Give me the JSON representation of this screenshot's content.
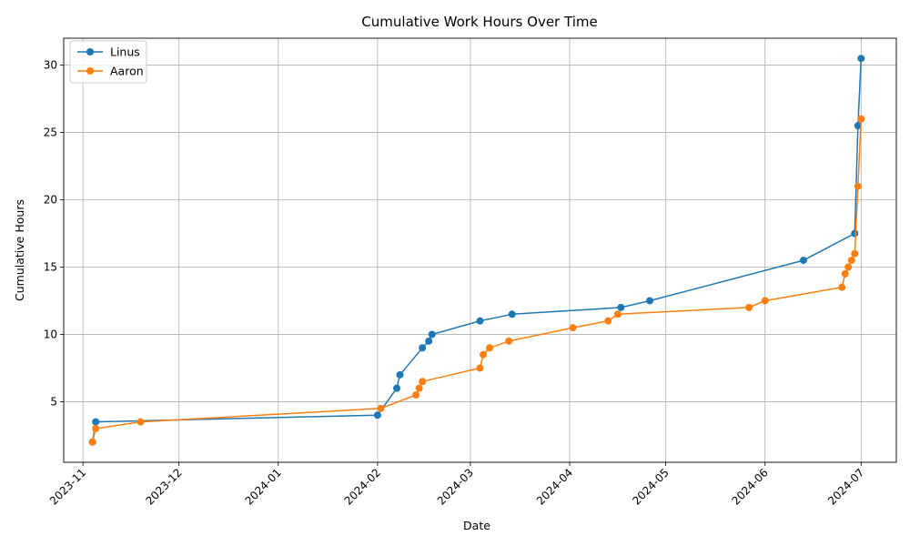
{
  "chart_data": {
    "type": "line",
    "title": "Cumulative Work Hours Over Time",
    "xlabel": "Date",
    "ylabel": "Cumulative Hours",
    "grid": true,
    "legend_position": "top-left",
    "xlim": [
      "2023-10-26",
      "2024-07-12"
    ],
    "ylim": [
      0.5,
      32
    ],
    "x_ticks": [
      "2023-11-01",
      "2023-12-01",
      "2024-01-01",
      "2024-02-01",
      "2024-03-01",
      "2024-04-01",
      "2024-05-01",
      "2024-06-01",
      "2024-07-01"
    ],
    "x_tick_labels": [
      "2023-11",
      "2023-12",
      "2024-01",
      "2024-02",
      "2024-03",
      "2024-04",
      "2024-05",
      "2024-06",
      "2024-07"
    ],
    "y_ticks": [
      5,
      10,
      15,
      20,
      25,
      30
    ],
    "y_tick_labels": [
      "5",
      "10",
      "15",
      "20",
      "25",
      "30"
    ],
    "series": [
      {
        "name": "Linus",
        "color": "#1f77b4",
        "points": [
          {
            "x": "2023-11-04",
            "y": 2.0
          },
          {
            "x": "2023-11-05",
            "y": 3.5
          },
          {
            "x": "2024-02-01",
            "y": 4.0
          },
          {
            "x": "2024-02-07",
            "y": 6.0
          },
          {
            "x": "2024-02-08",
            "y": 7.0
          },
          {
            "x": "2024-02-15",
            "y": 9.0
          },
          {
            "x": "2024-02-17",
            "y": 9.5
          },
          {
            "x": "2024-02-18",
            "y": 10.0
          },
          {
            "x": "2024-03-04",
            "y": 11.0
          },
          {
            "x": "2024-03-14",
            "y": 11.5
          },
          {
            "x": "2024-04-17",
            "y": 12.0
          },
          {
            "x": "2024-04-26",
            "y": 12.5
          },
          {
            "x": "2024-06-13",
            "y": 15.5
          },
          {
            "x": "2024-06-29",
            "y": 17.5
          },
          {
            "x": "2024-06-30",
            "y": 25.5
          },
          {
            "x": "2024-07-01",
            "y": 30.5
          }
        ]
      },
      {
        "name": "Aaron",
        "color": "#ff7f0e",
        "points": [
          {
            "x": "2023-11-04",
            "y": 2.0
          },
          {
            "x": "2023-11-05",
            "y": 3.0
          },
          {
            "x": "2023-11-19",
            "y": 3.5
          },
          {
            "x": "2024-02-02",
            "y": 4.5
          },
          {
            "x": "2024-02-13",
            "y": 5.5
          },
          {
            "x": "2024-02-14",
            "y": 6.0
          },
          {
            "x": "2024-02-15",
            "y": 6.5
          },
          {
            "x": "2024-03-04",
            "y": 7.5
          },
          {
            "x": "2024-03-05",
            "y": 8.5
          },
          {
            "x": "2024-03-07",
            "y": 9.0
          },
          {
            "x": "2024-03-13",
            "y": 9.5
          },
          {
            "x": "2024-04-02",
            "y": 10.5
          },
          {
            "x": "2024-04-13",
            "y": 11.0
          },
          {
            "x": "2024-04-16",
            "y": 11.5
          },
          {
            "x": "2024-05-27",
            "y": 12.0
          },
          {
            "x": "2024-06-01",
            "y": 12.5
          },
          {
            "x": "2024-06-25",
            "y": 13.5
          },
          {
            "x": "2024-06-26",
            "y": 14.5
          },
          {
            "x": "2024-06-27",
            "y": 15.0
          },
          {
            "x": "2024-06-28",
            "y": 15.5
          },
          {
            "x": "2024-06-29",
            "y": 16.0
          },
          {
            "x": "2024-06-30",
            "y": 21.0
          },
          {
            "x": "2024-07-01",
            "y": 26.0
          }
        ]
      }
    ]
  }
}
